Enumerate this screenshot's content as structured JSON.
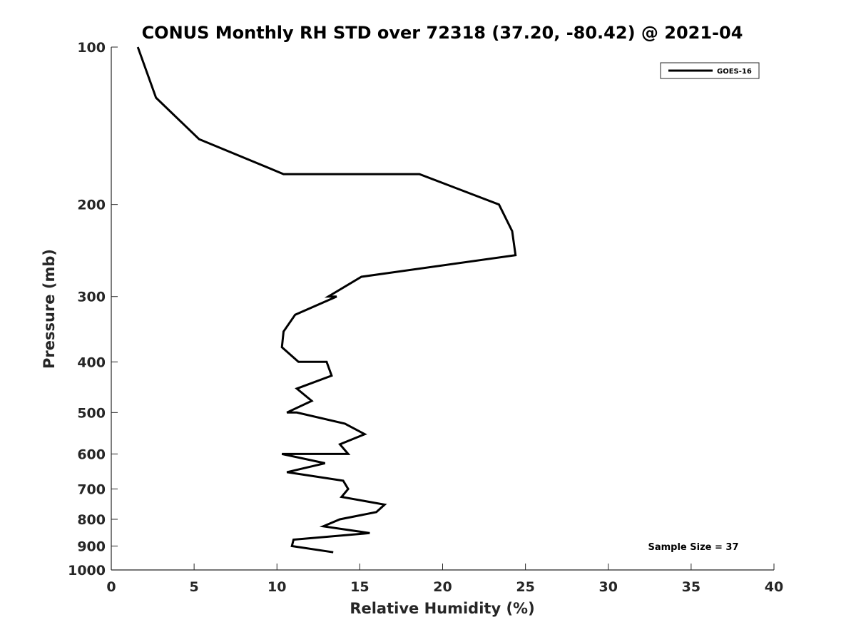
{
  "chart_data": {
    "type": "line",
    "title": "CONUS Monthly RH STD over 72318 (37.20, -80.42) @ 2021-04",
    "xlabel": "Relative Humidity (%)",
    "ylabel": "Pressure (mb)",
    "xlim": [
      0,
      40
    ],
    "ylim": [
      100,
      1000
    ],
    "y_scale": "log",
    "y_reversed": true,
    "x_ticks": [
      0,
      5,
      10,
      15,
      20,
      25,
      30,
      35,
      40
    ],
    "y_ticks": [
      100,
      200,
      300,
      400,
      500,
      600,
      700,
      800,
      900,
      1000
    ],
    "grid": false,
    "legend_position": "top-right",
    "annotation": "Sample Size = 37",
    "colors": {
      "series": "#000000",
      "axis": "#262626"
    },
    "series": [
      {
        "name": "GOES-16",
        "points": [
          {
            "x": 1.6,
            "y": 100
          },
          {
            "x": 2.7,
            "y": 125
          },
          {
            "x": 5.3,
            "y": 150
          },
          {
            "x": 10.4,
            "y": 175
          },
          {
            "x": 18.6,
            "y": 175
          },
          {
            "x": 23.4,
            "y": 200
          },
          {
            "x": 24.2,
            "y": 225
          },
          {
            "x": 24.4,
            "y": 250
          },
          {
            "x": 15.1,
            "y": 275
          },
          {
            "x": 13.1,
            "y": 300
          },
          {
            "x": 13.6,
            "y": 300
          },
          {
            "x": 11.1,
            "y": 325
          },
          {
            "x": 10.4,
            "y": 350
          },
          {
            "x": 10.3,
            "y": 375
          },
          {
            "x": 11.3,
            "y": 400
          },
          {
            "x": 13.0,
            "y": 400
          },
          {
            "x": 13.3,
            "y": 425
          },
          {
            "x": 11.2,
            "y": 450
          },
          {
            "x": 12.1,
            "y": 475
          },
          {
            "x": 10.6,
            "y": 500
          },
          {
            "x": 11.2,
            "y": 500
          },
          {
            "x": 14.1,
            "y": 525
          },
          {
            "x": 15.3,
            "y": 550
          },
          {
            "x": 13.8,
            "y": 575
          },
          {
            "x": 14.3,
            "y": 600
          },
          {
            "x": 10.3,
            "y": 600
          },
          {
            "x": 12.9,
            "y": 625
          },
          {
            "x": 10.6,
            "y": 650
          },
          {
            "x": 14.0,
            "y": 675
          },
          {
            "x": 14.3,
            "y": 700
          },
          {
            "x": 13.9,
            "y": 725
          },
          {
            "x": 16.5,
            "y": 750
          },
          {
            "x": 16.0,
            "y": 775
          },
          {
            "x": 13.8,
            "y": 800
          },
          {
            "x": 12.8,
            "y": 825
          },
          {
            "x": 15.6,
            "y": 850
          },
          {
            "x": 11.0,
            "y": 875
          },
          {
            "x": 10.9,
            "y": 900
          },
          {
            "x": 13.4,
            "y": 925
          }
        ]
      }
    ]
  }
}
